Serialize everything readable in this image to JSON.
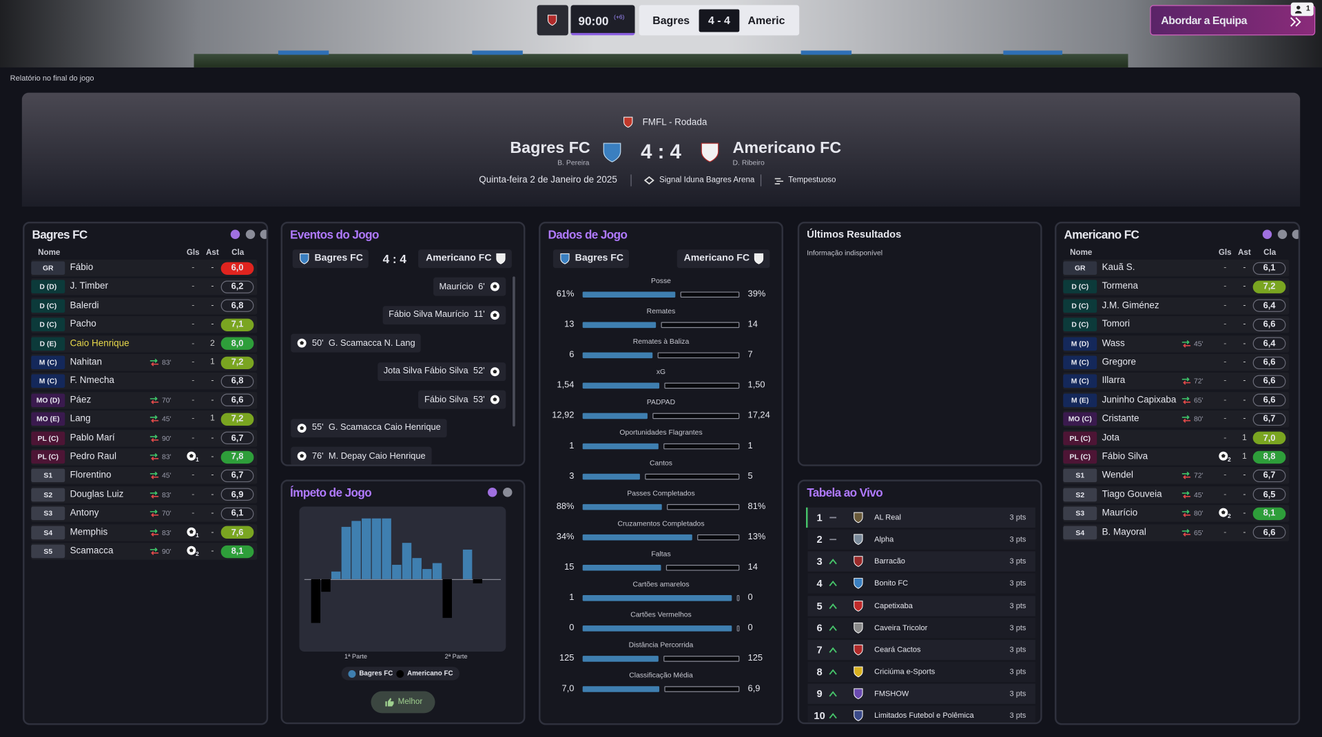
{
  "top_bar": {
    "clock": "90:00",
    "added_time": "(+6)",
    "home": "Bagres",
    "score": "4 - 4",
    "away": "Americ",
    "button": "Abordar a Equipa",
    "notifications": "1"
  },
  "report_label": "Relatório no final do jogo",
  "header": {
    "competition": "FMFL - Rodada",
    "home": "Bagres FC",
    "home_manager": "B. Pereira",
    "score": "4 : 4",
    "away": "Americano FC",
    "away_manager": "D. Ribeiro",
    "date": "Quinta-feira 2 de Janeiro de 2025",
    "stadium": "Signal Iduna Bagres Arena",
    "weather": "Tempestuoso"
  },
  "home_team": {
    "title": "Bagres FC",
    "columns": [
      "Nome",
      "Gls",
      "Ast",
      "Cla"
    ],
    "players": [
      {
        "pos": "GR",
        "name": "Fábio",
        "gls": "-",
        "ast": "-",
        "rating": "6,0"
      },
      {
        "pos": "D (D)",
        "name": "J. Timber",
        "gls": "-",
        "ast": "-",
        "rating": "6,2"
      },
      {
        "pos": "D (C)",
        "name": "Balerdi",
        "gls": "-",
        "ast": "-",
        "rating": "6,8"
      },
      {
        "pos": "D (C)",
        "name": "Pacho",
        "gls": "-",
        "ast": "-",
        "rating": "7,1"
      },
      {
        "pos": "D (E)",
        "name": "Caio Henrique",
        "highlight": true,
        "gls": "-",
        "ast": "2",
        "rating": "8,0"
      },
      {
        "pos": "M (C)",
        "name": "Nahitan",
        "sub": "83'",
        "gls": "-",
        "ast": "1",
        "rating": "7,2"
      },
      {
        "pos": "M (C)",
        "name": "F. Nmecha",
        "gls": "-",
        "ast": "-",
        "rating": "6,8"
      },
      {
        "pos": "MO (D)",
        "name": "Páez",
        "sub": "70'",
        "gls": "-",
        "ast": "-",
        "rating": "6,6"
      },
      {
        "pos": "MO (E)",
        "name": "Lang",
        "sub": "45'",
        "gls": "-",
        "ast": "1",
        "rating": "7,2"
      },
      {
        "pos": "PL (C)",
        "name": "Pablo Marí",
        "sub": "90'",
        "gls": "-",
        "ast": "-",
        "rating": "6,7"
      },
      {
        "pos": "PL (C)",
        "name": "Pedro Raul",
        "sub": "83'",
        "gls": "1",
        "ast": "-",
        "rating": "7,8"
      },
      {
        "pos": "S1",
        "name": "Florentino",
        "sub": "45'",
        "gls": "-",
        "ast": "-",
        "rating": "6,7"
      },
      {
        "pos": "S2",
        "name": "Douglas Luiz",
        "sub": "83'",
        "gls": "-",
        "ast": "-",
        "rating": "6,9"
      },
      {
        "pos": "S3",
        "name": "Antony",
        "sub": "70'",
        "gls": "-",
        "ast": "-",
        "rating": "6,1"
      },
      {
        "pos": "S4",
        "name": "Memphis",
        "sub": "83'",
        "gls": "1",
        "ast": "-",
        "rating": "7,6"
      },
      {
        "pos": "S5",
        "name": "Scamacca",
        "sub": "90'",
        "gls": "2",
        "ast": "-",
        "rating": "8,1"
      }
    ]
  },
  "events": {
    "title": "Eventos do Jogo",
    "home": "Bagres FC",
    "score": "4 : 4",
    "away": "Americano FC",
    "items": [
      {
        "side": "away",
        "players": "Maurício",
        "minute": "6'"
      },
      {
        "side": "away",
        "players": "Fábio Silva  Maurício",
        "minute": "11'"
      },
      {
        "side": "home",
        "players": "G. Scamacca  N. Lang",
        "minute": "50'"
      },
      {
        "side": "away",
        "players": "Jota Silva  Fábio Silva",
        "minute": "52'"
      },
      {
        "side": "away",
        "players": "Fábio Silva",
        "minute": "53'"
      },
      {
        "side": "home",
        "players": "G. Scamacca  Caio Henrique",
        "minute": "55'"
      },
      {
        "side": "home",
        "players": "M. Depay  Caio Henrique",
        "minute": "76'"
      }
    ]
  },
  "momentum": {
    "title": "Ímpeto de Jogo",
    "values": [
      -60,
      -18,
      10,
      72,
      80,
      84,
      84,
      84,
      20,
      50,
      29,
      14,
      22,
      -54,
      0,
      41,
      -6
    ],
    "ylim": [
      -100,
      100
    ],
    "home_color": "#3f7fb0",
    "away_color": "#000000",
    "halves": [
      "1ª Parte",
      "2ª Parte"
    ],
    "legend": [
      "Bagres FC",
      "Americano FC"
    ],
    "button": "Melhor"
  },
  "stats": {
    "title": "Dados de Jogo",
    "home": "Bagres FC",
    "away": "Americano FC",
    "rows": [
      {
        "label": "Posse",
        "home": "61%",
        "away": "39%"
      },
      {
        "label": "Remates",
        "home": "13",
        "away": "14"
      },
      {
        "label": "Remates à Baliza",
        "home": "6",
        "away": "7"
      },
      {
        "label": "xG",
        "home": "1,54",
        "away": "1,50"
      },
      {
        "label": "PADPAD",
        "home": "12,92",
        "away": "17,24"
      },
      {
        "label": "Oportunidades Flagrantes",
        "home": "1",
        "away": "1"
      },
      {
        "label": "Cantos",
        "home": "3",
        "away": "5"
      },
      {
        "label": "Passes Completados",
        "home": "88%",
        "away": "81%"
      },
      {
        "label": "Cruzamentos Completados",
        "home": "34%",
        "away": "13%"
      },
      {
        "label": "Faltas",
        "home": "15",
        "away": "14"
      },
      {
        "label": "Cartões amarelos",
        "home": "1",
        "away": "0"
      },
      {
        "label": "Cartões Vermelhos",
        "home": "0",
        "away": "0"
      },
      {
        "label": "Distância Percorrida",
        "home": "125",
        "away": "125"
      },
      {
        "label": "Classificação Média",
        "home": "7,0",
        "away": "6,9"
      }
    ]
  },
  "last_results": {
    "title": "Últimos Resultados",
    "message": "Informação indisponível"
  },
  "live_table": {
    "title": "Tabela ao Vivo",
    "rows": [
      {
        "pos": "1",
        "trend": "same",
        "team": "AL Real",
        "pts": "3 pts"
      },
      {
        "pos": "2",
        "trend": "same",
        "team": "Alpha",
        "pts": "3 pts"
      },
      {
        "pos": "3",
        "trend": "up",
        "team": "Barracão",
        "pts": "3 pts"
      },
      {
        "pos": "4",
        "trend": "up",
        "team": "Bonito FC",
        "pts": "3 pts"
      },
      {
        "pos": "5",
        "trend": "up",
        "team": "Capetixaba",
        "pts": "3 pts"
      },
      {
        "pos": "6",
        "trend": "up",
        "team": "Caveira Tricolor",
        "pts": "3 pts"
      },
      {
        "pos": "7",
        "trend": "up",
        "team": "Ceará Cactos",
        "pts": "3 pts"
      },
      {
        "pos": "8",
        "trend": "up",
        "team": "Criciúma e-Sports",
        "pts": "3 pts"
      },
      {
        "pos": "9",
        "trend": "up",
        "team": "FMSHOW",
        "pts": "3 pts"
      },
      {
        "pos": "10",
        "trend": "up",
        "team": "Limitados Futebol e Polêmica",
        "pts": "3 pts"
      }
    ]
  },
  "away_team": {
    "title": "Americano FC",
    "columns": [
      "Nome",
      "Gls",
      "Ast",
      "Cla"
    ],
    "players": [
      {
        "pos": "GR",
        "name": "Kauã S.",
        "gls": "-",
        "ast": "-",
        "rating": "6,1"
      },
      {
        "pos": "D (C)",
        "name": "Tormena",
        "gls": "-",
        "ast": "-",
        "rating": "7,2"
      },
      {
        "pos": "D (C)",
        "name": "J.M. Giménez",
        "gls": "-",
        "ast": "-",
        "rating": "6,4"
      },
      {
        "pos": "D (C)",
        "name": "Tomori",
        "gls": "-",
        "ast": "-",
        "rating": "6,6"
      },
      {
        "pos": "M (D)",
        "name": "Wass",
        "sub": "45'",
        "gls": "-",
        "ast": "-",
        "rating": "6,4"
      },
      {
        "pos": "M (C)",
        "name": "Gregore",
        "gls": "-",
        "ast": "-",
        "rating": "6,6"
      },
      {
        "pos": "M (C)",
        "name": "Illarra",
        "sub": "72'",
        "gls": "-",
        "ast": "-",
        "rating": "6,6"
      },
      {
        "pos": "M (E)",
        "name": "Juninho Capixaba",
        "sub": "65'",
        "gls": "-",
        "ast": "-",
        "rating": "6,6"
      },
      {
        "pos": "MO (C)",
        "name": "Cristante",
        "sub": "80'",
        "gls": "-",
        "ast": "-",
        "rating": "6,7"
      },
      {
        "pos": "PL (C)",
        "name": "Jota",
        "gls": "-",
        "ast": "1",
        "rating": "7,0"
      },
      {
        "pos": "PL (C)",
        "name": "Fábio Silva",
        "gls": "2",
        "ast": "1",
        "rating": "8,8"
      },
      {
        "pos": "S1",
        "name": "Wendel",
        "sub": "72'",
        "gls": "-",
        "ast": "-",
        "rating": "6,7"
      },
      {
        "pos": "S2",
        "name": "Tiago Gouveia",
        "sub": "45'",
        "gls": "-",
        "ast": "-",
        "rating": "6,5"
      },
      {
        "pos": "S3",
        "name": "Maurício",
        "sub": "80'",
        "gls": "2",
        "ast": "-",
        "rating": "8,1"
      },
      {
        "pos": "S4",
        "name": "B. Mayoral",
        "sub": "65'",
        "gls": "-",
        "ast": "-",
        "rating": "6,6"
      }
    ]
  }
}
